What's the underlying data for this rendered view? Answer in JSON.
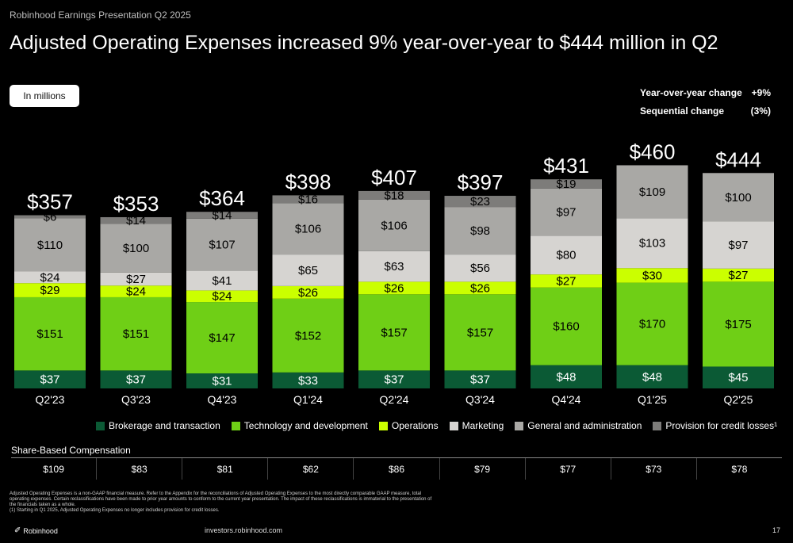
{
  "header": {
    "presentation": "Robinhood Earnings Presentation Q2 2025",
    "title": "Adjusted Operating Expenses increased 9% year-over-year to $444 million in Q2"
  },
  "unit_badge": "In millions",
  "changes": [
    {
      "label": "Year-over-year change",
      "value": "+9%"
    },
    {
      "label": "Sequential change",
      "value": "(3%)"
    }
  ],
  "chart_data": {
    "type": "bar",
    "stacked": true,
    "categories": [
      "Q2'23",
      "Q3'23",
      "Q4'23",
      "Q1'24",
      "Q2'24",
      "Q3'24",
      "Q4'24",
      "Q1'25",
      "Q2'25"
    ],
    "series": [
      {
        "name": "Brokerage and transaction",
        "color": "#0b5a35",
        "values": [
          37,
          37,
          31,
          33,
          37,
          37,
          48,
          48,
          45
        ]
      },
      {
        "name": "Technology and development",
        "color": "#6fcf16",
        "values": [
          151,
          151,
          147,
          152,
          157,
          157,
          160,
          170,
          175
        ]
      },
      {
        "name": "Operations",
        "color": "#cbff00",
        "values": [
          29,
          24,
          24,
          26,
          26,
          26,
          27,
          30,
          27
        ]
      },
      {
        "name": "Marketing",
        "color": "#d6d4d1",
        "values": [
          24,
          27,
          41,
          65,
          63,
          56,
          80,
          103,
          97
        ]
      },
      {
        "name": "General and administration",
        "color": "#a9a8a5",
        "values": [
          110,
          100,
          107,
          106,
          106,
          98,
          97,
          109,
          100
        ]
      },
      {
        "name": "Provision for credit losses¹",
        "color": "#7d7c7a",
        "values": [
          6,
          14,
          14,
          16,
          18,
          23,
          19,
          0,
          0
        ]
      }
    ],
    "totals": [
      357,
      353,
      364,
      398,
      407,
      397,
      431,
      460,
      444
    ],
    "total_labels": [
      "$357",
      "$353",
      "$364",
      "$398",
      "$407",
      "$397",
      "$431",
      "$460",
      "$444"
    ],
    "labels": [
      [
        "$37",
        "$37",
        "$31",
        "$33",
        "$37",
        "$37",
        "$48",
        "$48",
        "$45"
      ],
      [
        "$151",
        "$151",
        "$147",
        "$152",
        "$157",
        "$157",
        "$160",
        "$170",
        "$175"
      ],
      [
        "$29",
        "$24",
        "$24",
        "$26",
        "$26",
        "$26",
        "$27",
        "$30",
        "$27"
      ],
      [
        "$24",
        "$27",
        "$41",
        "$65",
        "$63",
        "$56",
        "$80",
        "$103",
        "$97"
      ],
      [
        "$110",
        "$100",
        "$107",
        "$106",
        "$106",
        "$98",
        "$97",
        "$109",
        "$100"
      ],
      [
        "$6",
        "$14",
        "$14",
        "$16",
        "$18",
        "$23",
        "$19",
        "",
        ""
      ]
    ],
    "text_colors": [
      "#ffffff",
      "#000000",
      "#000000",
      "#000000",
      "#000000",
      "#000000"
    ]
  },
  "share_based": {
    "title": "Share-Based Compensation",
    "values": [
      "$109",
      "$83",
      "$81",
      "$62",
      "$86",
      "$79",
      "$77",
      "$73",
      "$78"
    ]
  },
  "footnotes": [
    "Adjusted Operating Expenses is a non-GAAP financial measure. Refer to the Appendix for the reconciliations of Adjusted Operating Expenses to the most directly comparable GAAP measure, total operating expenses. Certain reclassifications have been made to prior year amounts to conform to the current year presentation. The impact of these reclassifications is immaterial to the presentation of the financials taken as a whole.",
    "(1) Starting in Q1 2025, Adjusted Operating Expenses no longer includes provision for credit losses."
  ],
  "footer": {
    "brand": "Robinhood",
    "brand_icon": "feather-icon",
    "site": "investors.robinhood.com",
    "page": "17"
  }
}
